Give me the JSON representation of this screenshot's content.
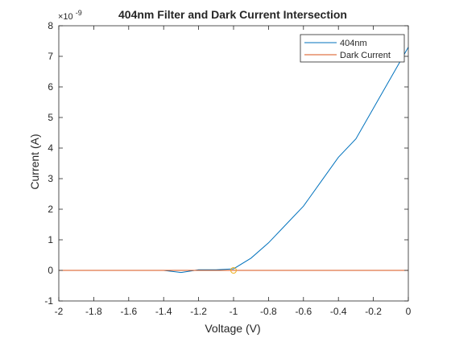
{
  "chart_data": {
    "type": "line",
    "title": "404nm Filter and Dark Current Intersection",
    "xlabel": "Voltage (V)",
    "ylabel": "Current (A)",
    "xlim": [
      -2,
      0
    ],
    "ylim": [
      -1,
      8
    ],
    "y_exponent_label": "×10",
    "y_exponent_power": "-9",
    "x_ticks": [
      -2,
      -1.8,
      -1.6,
      -1.4,
      -1.2,
      -1,
      -0.8,
      -0.6,
      -0.4,
      -0.2,
      0
    ],
    "x_tick_labels": [
      "-2",
      "-1.8",
      "-1.6",
      "-1.4",
      "-1.2",
      "-1",
      "-0.8",
      "-0.6",
      "-0.4",
      "-0.2",
      "0"
    ],
    "y_ticks": [
      -1,
      0,
      1,
      2,
      3,
      4,
      5,
      6,
      7,
      8
    ],
    "y_tick_labels": [
      "-1",
      "0",
      "1",
      "2",
      "3",
      "4",
      "5",
      "6",
      "7",
      "8"
    ],
    "grid": false,
    "legend_position": "top-right",
    "series": [
      {
        "name": "404nm",
        "color": "#0072bd",
        "x": [
          -2.0,
          -1.9,
          -1.8,
          -1.7,
          -1.6,
          -1.5,
          -1.4,
          -1.3,
          -1.2,
          -1.1,
          -1.0,
          -0.9,
          -0.8,
          -0.7,
          -0.6,
          -0.5,
          -0.4,
          -0.3,
          -0.2,
          -0.1,
          0.0
        ],
        "y": [
          0.0,
          0.0,
          0.0,
          0.0,
          0.0,
          0.0,
          0.0,
          -0.07,
          0.02,
          0.02,
          0.05,
          0.4,
          0.9,
          1.5,
          2.1,
          2.9,
          3.7,
          4.3,
          5.3,
          6.3,
          7.3
        ]
      },
      {
        "name": "Dark Current",
        "color": "#d95319",
        "x": [
          -2.0,
          0.0
        ],
        "y": [
          0.0,
          0.0
        ]
      }
    ],
    "annotations": [
      {
        "type": "circle-marker",
        "x": -1.0,
        "y": 0.0,
        "color": "#edb120"
      }
    ]
  }
}
